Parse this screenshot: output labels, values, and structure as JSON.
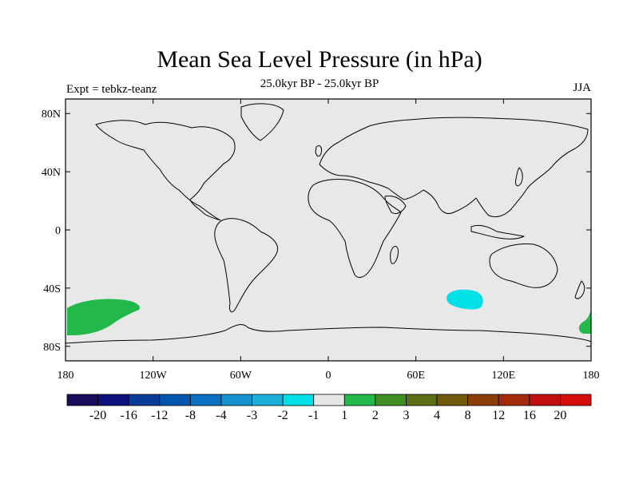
{
  "title": "Mean Sea Level Pressure (in hPa)",
  "subtitle": "25.0kyr BP - 25.0kyr BP",
  "experiment": "Expt = tebkz-teanz",
  "season": "JJA",
  "map": {
    "projection": "cylindrical-equidistant",
    "lon_range": [
      -180,
      180
    ],
    "lat_range": [
      -90,
      90
    ],
    "background_color": "#e8e8e8",
    "coastline_color": "#000000",
    "lat_ticks": [
      {
        "value": 80,
        "label": "80N"
      },
      {
        "value": 40,
        "label": "40N"
      },
      {
        "value": 0,
        "label": "0"
      },
      {
        "value": -40,
        "label": "40S"
      },
      {
        "value": -80,
        "label": "80S"
      }
    ],
    "lon_ticks": [
      {
        "value": -180,
        "label": "180"
      },
      {
        "value": -120,
        "label": "120W"
      },
      {
        "value": -60,
        "label": "60W"
      },
      {
        "value": 0,
        "label": "0"
      },
      {
        "value": 60,
        "label": "60E"
      },
      {
        "value": 120,
        "label": "120E"
      },
      {
        "value": 180,
        "label": "180"
      }
    ],
    "anomaly_regions": [
      {
        "name": "south-pacific-positive",
        "range": "1 to 2",
        "color": "#22b84a"
      },
      {
        "name": "southern-indian-negative",
        "range": "-2 to -1",
        "color": "#00e0e6"
      },
      {
        "name": "tasman-edge-positive",
        "range": "1 to 2",
        "color": "#22b84a"
      }
    ]
  },
  "colorbar": {
    "colors": [
      "#1a0d5c",
      "#10107e",
      "#0a3b96",
      "#0056ad",
      "#0a72c1",
      "#1592d0",
      "#1ab0da",
      "#00e0e6",
      "#e6e6e6",
      "#22b84a",
      "#3f8f22",
      "#5a6f12",
      "#6e5a0a",
      "#8a3e08",
      "#a32a0a",
      "#c10f0f",
      "#d80d0d"
    ],
    "labels": [
      "-20",
      "-16",
      "-12",
      "-8",
      "-4",
      "-3",
      "-2",
      "-1",
      "1",
      "2",
      "3",
      "4",
      "8",
      "12",
      "16",
      "20"
    ]
  }
}
